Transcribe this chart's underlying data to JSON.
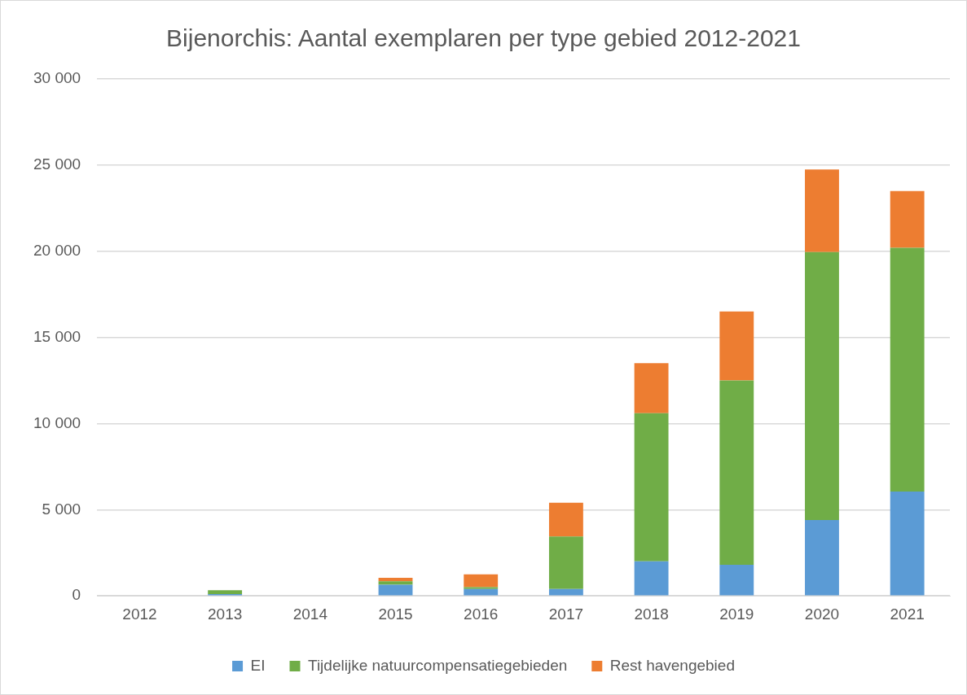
{
  "chart_data": {
    "type": "bar",
    "title": "Bijenorchis: Aantal exemplaren per type gebied 2012-2021",
    "categories": [
      "2012",
      "2013",
      "2014",
      "2015",
      "2016",
      "2017",
      "2018",
      "2019",
      "2020",
      "2021"
    ],
    "stacked": true,
    "series": [
      {
        "name": "EI",
        "color": "#5b9bd5",
        "values": [
          null,
          100,
          0,
          650,
          400,
          400,
          2000,
          1800,
          4400,
          6050
        ]
      },
      {
        "name": "Tijdelijke natuurcompensatiegebieden",
        "color": "#70ad47",
        "values": [
          0,
          230,
          0,
          200,
          100,
          3050,
          8600,
          10700,
          15550,
          14150
        ]
      },
      {
        "name": "Rest havengebied",
        "color": "#ed7d31",
        "values": [
          0,
          0,
          null,
          200,
          750,
          1950,
          2900,
          4000,
          4800,
          3300
        ]
      }
    ],
    "ylim": [
      0,
      30000
    ],
    "yticks": [
      {
        "value": 0,
        "label": "0"
      },
      {
        "value": 5000,
        "label": "5 000"
      },
      {
        "value": 10000,
        "label": "10 000"
      },
      {
        "value": 15000,
        "label": "15 000"
      },
      {
        "value": 20000,
        "label": "20 000"
      },
      {
        "value": 25000,
        "label": "25 000"
      },
      {
        "value": 30000,
        "label": "30 000"
      }
    ],
    "grid": "y",
    "legend": "bottom"
  }
}
